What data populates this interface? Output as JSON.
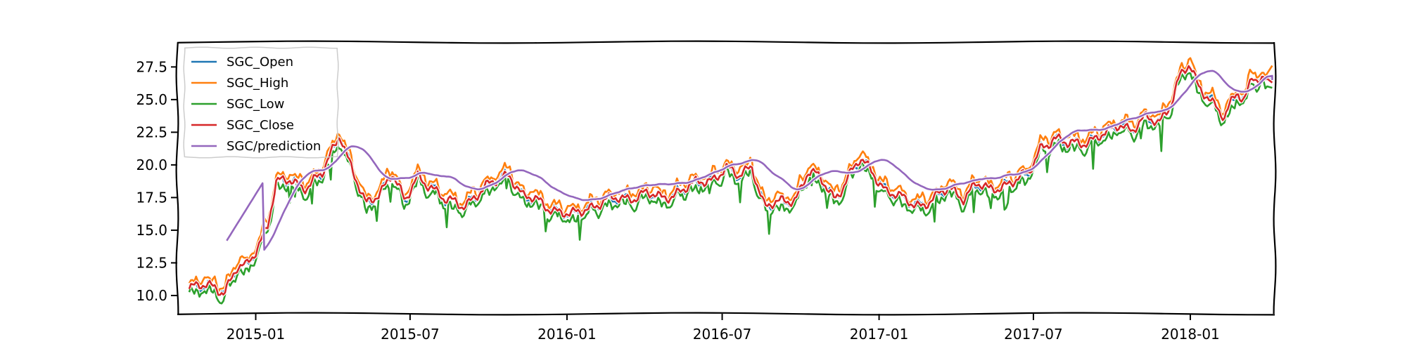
{
  "chart_data": {
    "type": "line",
    "title": "",
    "xlabel": "",
    "ylabel": "",
    "ylim": [
      8.6,
      29.4
    ],
    "xlim": [
      "2014-10-01",
      "2018-04-10"
    ],
    "grid": false,
    "legend_position": "top-left",
    "x_ticks": [
      {
        "date": "2015-01-01",
        "label": "2015-01"
      },
      {
        "date": "2015-07-01",
        "label": "2015-07"
      },
      {
        "date": "2016-01-01",
        "label": "2016-01"
      },
      {
        "date": "2016-07-01",
        "label": "2016-07"
      },
      {
        "date": "2017-01-01",
        "label": "2017-01"
      },
      {
        "date": "2017-07-01",
        "label": "2017-07"
      },
      {
        "date": "2018-01-01",
        "label": "2018-01"
      }
    ],
    "y_ticks": [
      "10.0",
      "12.5",
      "15.0",
      "17.5",
      "20.0",
      "22.5",
      "25.0",
      "27.5"
    ],
    "close_anchors": [
      [
        "2014-10-15",
        10.5
      ],
      [
        "2014-11-15",
        10.8
      ],
      [
        "2014-11-25",
        10.3
      ],
      [
        "2014-12-10",
        12.0
      ],
      [
        "2014-12-20",
        12.1
      ],
      [
        "2015-01-01",
        13.5
      ],
      [
        "2015-01-15",
        15.5
      ],
      [
        "2015-01-25",
        18.5
      ],
      [
        "2015-02-10",
        18.8
      ],
      [
        "2015-03-01",
        18.4
      ],
      [
        "2015-03-20",
        19.2
      ],
      [
        "2015-04-10",
        22.5
      ],
      [
        "2015-04-25",
        19.5
      ],
      [
        "2015-05-10",
        16.8
      ],
      [
        "2015-05-25",
        17.8
      ],
      [
        "2015-06-10",
        19.5
      ],
      [
        "2015-06-25",
        17.0
      ],
      [
        "2015-07-10",
        19.2
      ],
      [
        "2015-07-25",
        18.5
      ],
      [
        "2015-08-10",
        17.2
      ],
      [
        "2015-09-01",
        17.0
      ],
      [
        "2015-09-20",
        17.8
      ],
      [
        "2015-10-05",
        18.5
      ],
      [
        "2015-10-25",
        19.5
      ],
      [
        "2015-11-10",
        17.5
      ],
      [
        "2015-12-01",
        17.2
      ],
      [
        "2015-12-20",
        16.5
      ],
      [
        "2016-01-05",
        16.0
      ],
      [
        "2016-01-25",
        16.8
      ],
      [
        "2016-02-15",
        17.2
      ],
      [
        "2016-03-10",
        17.5
      ],
      [
        "2016-04-01",
        17.8
      ],
      [
        "2016-04-20",
        17.4
      ],
      [
        "2016-05-10",
        18.0
      ],
      [
        "2016-06-01",
        18.5
      ],
      [
        "2016-06-20",
        19.0
      ],
      [
        "2016-07-05",
        19.8
      ],
      [
        "2016-07-20",
        19.0
      ],
      [
        "2016-08-05",
        20.0
      ],
      [
        "2016-08-20",
        16.8
      ],
      [
        "2016-09-05",
        17.0
      ],
      [
        "2016-09-25",
        17.5
      ],
      [
        "2016-10-10",
        19.5
      ],
      [
        "2016-10-25",
        18.8
      ],
      [
        "2016-11-10",
        17.5
      ],
      [
        "2016-11-25",
        19.0
      ],
      [
        "2016-12-10",
        20.3
      ],
      [
        "2016-12-25",
        19.5
      ],
      [
        "2017-01-10",
        18.0
      ],
      [
        "2017-02-01",
        17.2
      ],
      [
        "2017-02-20",
        17.0
      ],
      [
        "2017-03-10",
        17.5
      ],
      [
        "2017-03-25",
        18.2
      ],
      [
        "2017-04-10",
        17.6
      ],
      [
        "2017-04-25",
        18.5
      ],
      [
        "2017-05-10",
        18.0
      ],
      [
        "2017-05-25",
        18.5
      ],
      [
        "2017-06-10",
        18.8
      ],
      [
        "2017-06-25",
        19.2
      ],
      [
        "2017-07-10",
        21.5
      ],
      [
        "2017-07-25",
        22.0
      ],
      [
        "2017-08-10",
        21.5
      ],
      [
        "2017-08-25",
        21.8
      ],
      [
        "2017-09-10",
        22.0
      ],
      [
        "2017-09-25",
        22.3
      ],
      [
        "2017-10-10",
        23.2
      ],
      [
        "2017-10-25",
        22.8
      ],
      [
        "2017-11-10",
        23.5
      ],
      [
        "2017-11-25",
        23.2
      ],
      [
        "2017-12-10",
        25.0
      ],
      [
        "2017-12-20",
        26.8
      ],
      [
        "2017-12-31",
        27.5
      ],
      [
        "2018-01-10",
        26.0
      ],
      [
        "2018-01-20",
        25.5
      ],
      [
        "2018-02-01",
        24.5
      ],
      [
        "2018-02-10",
        23.5
      ],
      [
        "2018-02-25",
        25.5
      ],
      [
        "2018-03-05",
        25.0
      ],
      [
        "2018-03-15",
        27.0
      ],
      [
        "2018-03-25",
        26.5
      ],
      [
        "2018-04-01",
        26.2
      ]
    ],
    "series": [
      {
        "name": "SGC_Open",
        "color": "#1f77b4"
      },
      {
        "name": "SGC_High",
        "color": "#ff7f0e"
      },
      {
        "name": "SGC_Low",
        "color": "#2ca02c"
      },
      {
        "name": "SGC_Close",
        "color": "#d62728"
      },
      {
        "name": "SGC/prediction",
        "color": "#9467bd"
      }
    ]
  }
}
